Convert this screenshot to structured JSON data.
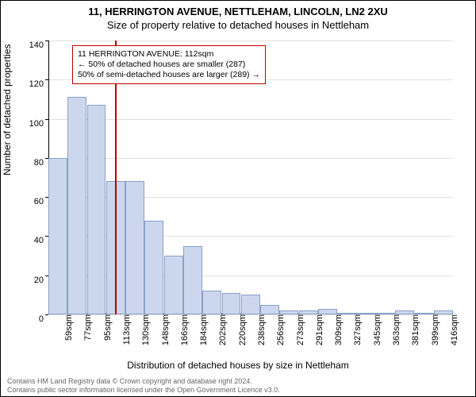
{
  "title_main": "11, HERRINGTON AVENUE, NETTLEHAM, LINCOLN, LN2 2XU",
  "title_sub": "Size of property relative to detached houses in Nettleham",
  "y_axis_label": "Number of detached properties",
  "x_axis_label": "Distribution of detached houses by size in Nettleham",
  "footer_line1": "Contains HM Land Registry data © Crown copyright and database right 2024.",
  "footer_line2": "Contains public sector information licensed under the Open Government Licence v3.0.",
  "callout": {
    "line1": "11 HERRINGTON AVENUE: 112sqm",
    "line2": "← 50% of detached houses are smaller (287)",
    "line3": "50% of semi-detached houses are larger (289) →"
  },
  "chart": {
    "type": "histogram",
    "ylim": [
      0,
      140
    ],
    "ytick_step": 20,
    "background_color": "#ffffff",
    "grid_color": "#e0e0e0",
    "bar_fill": "#ccd7ee",
    "bar_border": "#8aa0c8",
    "marker_color": "#c00000",
    "marker_x_value": 112,
    "x_categories": [
      "59sqm",
      "77sqm",
      "95sqm",
      "113sqm",
      "130sqm",
      "148sqm",
      "166sqm",
      "184sqm",
      "202sqm",
      "220sqm",
      "238sqm",
      "256sqm",
      "273sqm",
      "291sqm",
      "309sqm",
      "327sqm",
      "345sqm",
      "363sqm",
      "381sqm",
      "399sqm",
      "416sqm"
    ],
    "values": [
      80,
      111,
      107,
      68,
      68,
      48,
      30,
      35,
      12,
      11,
      10,
      5,
      2,
      2,
      3,
      1,
      1,
      1,
      2,
      1,
      2
    ],
    "title_fontsize": 13,
    "label_fontsize": 12,
    "tick_fontsize": 11,
    "callout_fontsize": 10.5,
    "footer_fontsize": 9
  }
}
